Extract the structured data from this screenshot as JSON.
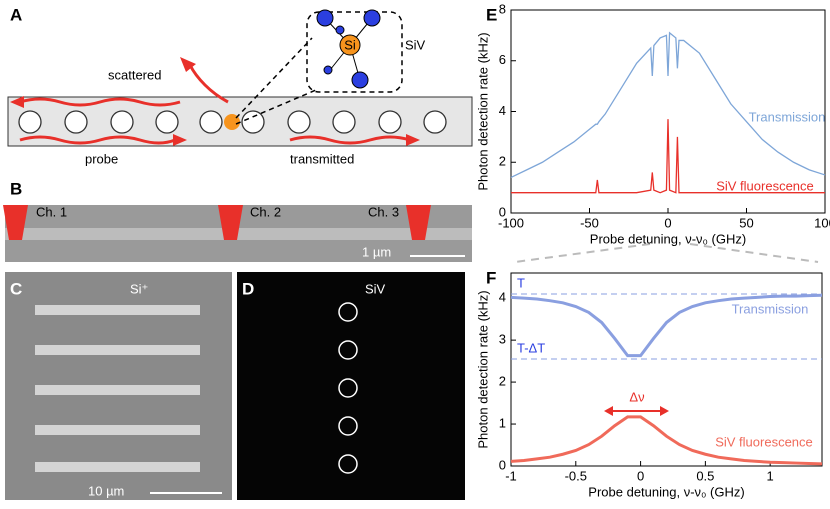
{
  "panels": {
    "a": {
      "label": "A",
      "scattered": "scattered",
      "probe": "probe",
      "transmitted": "transmitted",
      "atom": "Si",
      "defect": "SiV"
    },
    "b": {
      "label": "B",
      "ch1": "Ch. 1",
      "ch2": "Ch. 2",
      "ch3": "Ch. 3",
      "scale": "1 µm"
    },
    "c": {
      "label": "C",
      "ion": "Si⁺",
      "scale": "10 µm"
    },
    "d": {
      "label": "D",
      "defect": "SiV"
    }
  },
  "chart_data": [
    {
      "type": "line",
      "panel": "E",
      "xlabel": "Probe detuning, ν-ν₀ (GHz)",
      "ylabel": "Photon detection rate (kHz)",
      "x": [
        -100,
        -90,
        -80,
        -70,
        -60,
        -50,
        -46,
        -45,
        -44,
        -40,
        -30,
        -20,
        -11,
        -10,
        -9,
        -5,
        -1,
        0,
        1,
        5,
        6,
        7,
        10,
        20,
        30,
        40,
        50,
        60,
        70,
        80,
        90,
        100
      ],
      "series": [
        {
          "name": "Transmission",
          "color": "#7ea6d8",
          "values": [
            1.4,
            1.7,
            2.0,
            2.4,
            2.8,
            3.3,
            3.5,
            3.5,
            3.6,
            3.9,
            4.9,
            5.9,
            6.5,
            5.4,
            6.6,
            6.9,
            7.0,
            5.4,
            7.1,
            6.9,
            5.7,
            6.8,
            6.8,
            6.3,
            5.3,
            4.3,
            3.6,
            2.9,
            2.4,
            2.0,
            1.7,
            1.5
          ]
        },
        {
          "name": "SiV fluorescence",
          "color": "#e8302a",
          "values": [
            0.8,
            0.8,
            0.8,
            0.8,
            0.8,
            0.8,
            0.8,
            1.3,
            0.8,
            0.8,
            0.8,
            0.8,
            0.9,
            1.6,
            0.9,
            0.8,
            0.9,
            3.7,
            0.9,
            0.8,
            3.0,
            0.8,
            0.8,
            0.8,
            0.8,
            0.8,
            0.8,
            0.8,
            0.8,
            0.8,
            0.8,
            0.8
          ]
        }
      ],
      "xlim": [
        -100,
        100
      ],
      "xticks": [
        -100,
        -50,
        0,
        50,
        100
      ],
      "ylim": [
        0,
        8
      ],
      "yticks": [
        0,
        2,
        4,
        6,
        8
      ]
    },
    {
      "type": "line",
      "panel": "F",
      "xlabel": "Probe detuning, ν-ν₀ (GHz)",
      "ylabel": "Photon detection rate (kHz)",
      "x": [
        -1,
        -0.9,
        -0.8,
        -0.7,
        -0.6,
        -0.5,
        -0.4,
        -0.3,
        -0.2,
        -0.1,
        0,
        0.1,
        0.2,
        0.3,
        0.4,
        0.5,
        0.6,
        0.7,
        0.8,
        0.9,
        1,
        1.1,
        1.2,
        1.3,
        1.4
      ],
      "series": [
        {
          "name": "Transmission",
          "color": "#8a9fe0",
          "values": [
            4.02,
            4.0,
            3.98,
            3.94,
            3.89,
            3.8,
            3.66,
            3.42,
            3.04,
            2.63,
            2.63,
            3.04,
            3.42,
            3.66,
            3.8,
            3.89,
            3.94,
            3.98,
            4.0,
            4.02,
            4.04,
            4.05,
            4.05,
            4.06,
            4.07
          ]
        },
        {
          "name": "SiV fluorescence",
          "color": "#f06a5a",
          "values": [
            0.11,
            0.13,
            0.17,
            0.21,
            0.28,
            0.37,
            0.51,
            0.71,
            0.96,
            1.17,
            1.17,
            0.96,
            0.71,
            0.51,
            0.37,
            0.28,
            0.21,
            0.17,
            0.13,
            0.11,
            0.09,
            0.08,
            0.07,
            0.06,
            0.05
          ]
        }
      ],
      "hlines": [
        {
          "label": "T",
          "value": 4.1
        },
        {
          "label": "T-ΔT",
          "value": 2.55
        }
      ],
      "annotation": "Δν",
      "xlim": [
        -1,
        1.4
      ],
      "xticks": [
        -1,
        -0.5,
        0,
        0.5,
        1
      ],
      "ylim": [
        0,
        4.6
      ],
      "yticks": [
        0,
        1,
        2,
        3,
        4
      ]
    }
  ]
}
